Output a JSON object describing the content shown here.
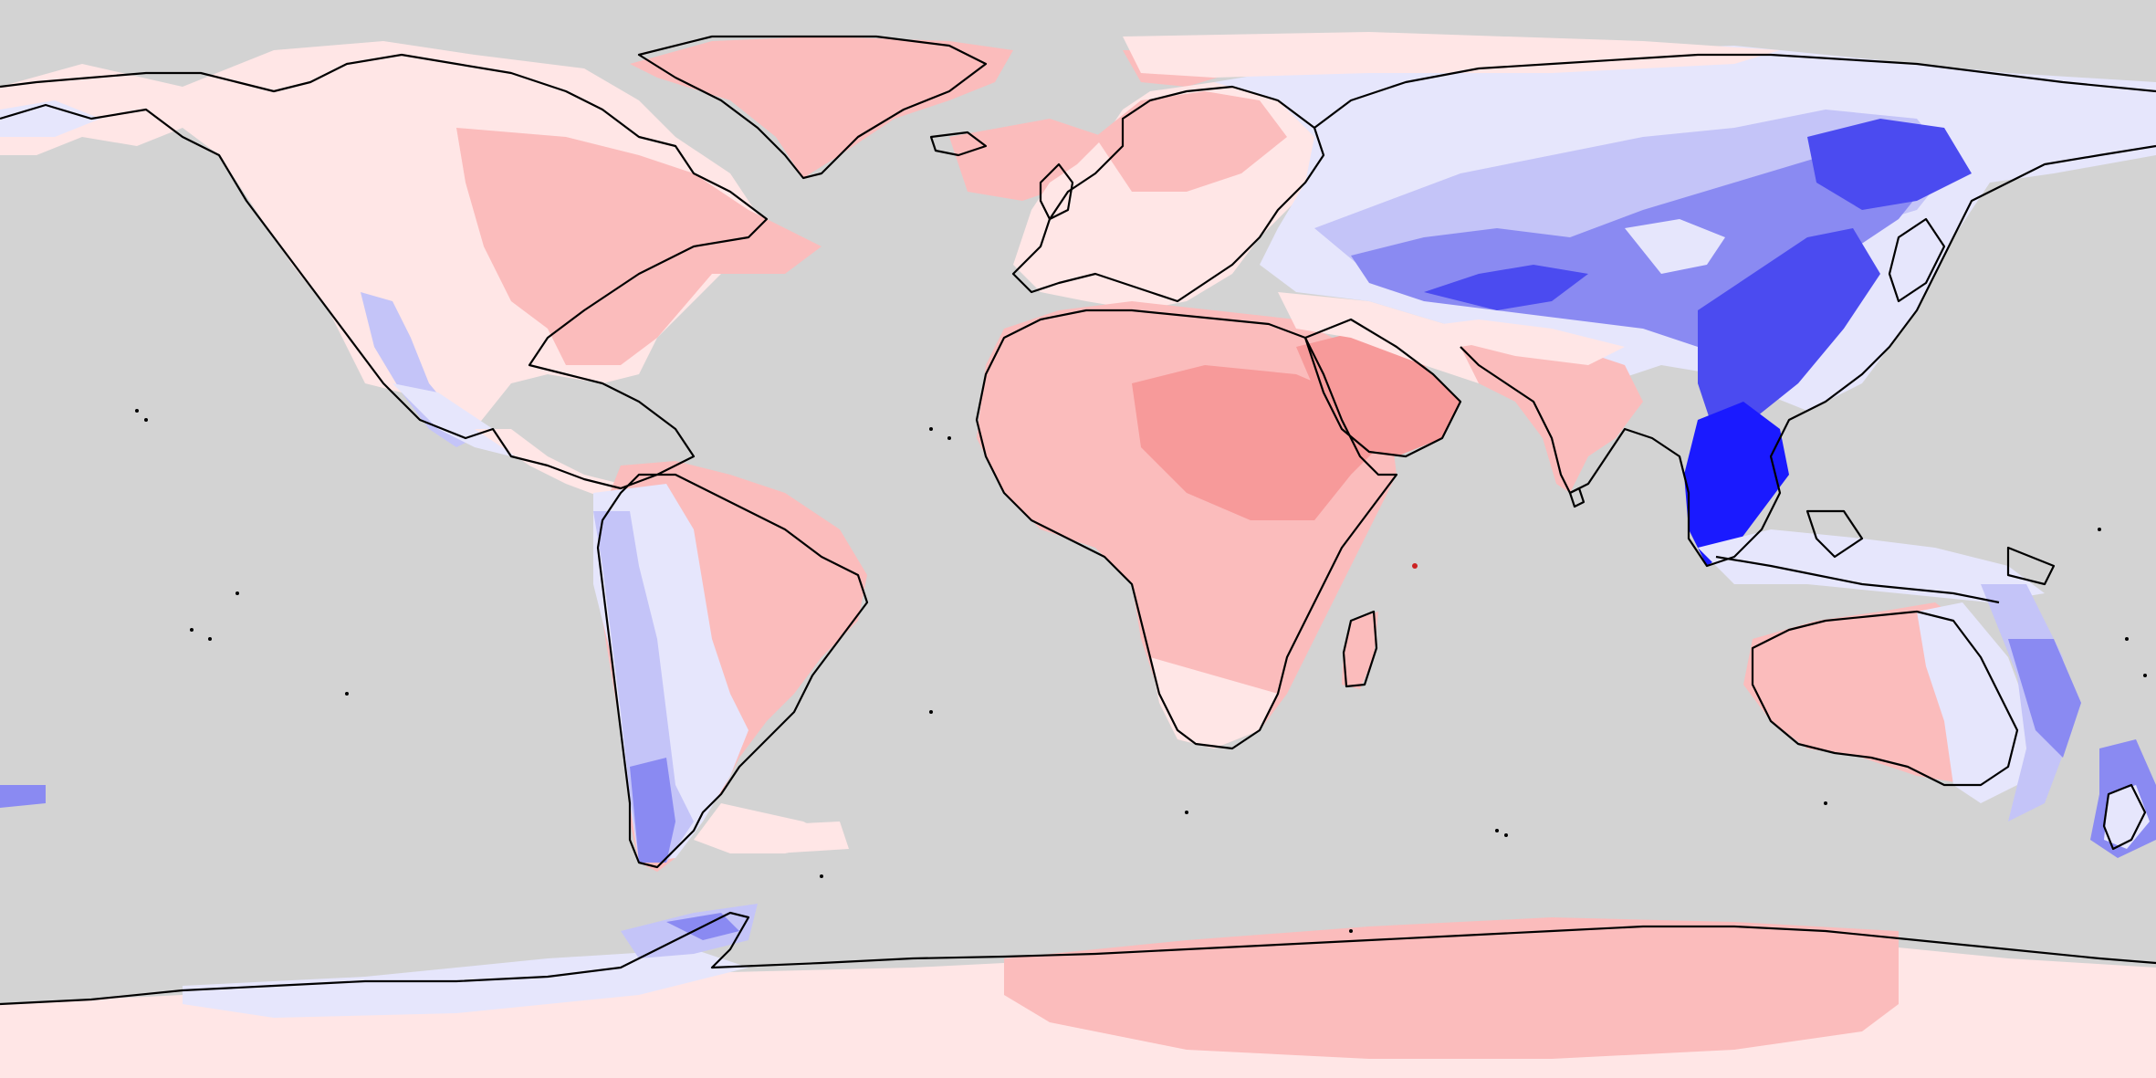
{
  "map": {
    "projection": "equirectangular",
    "extent": {
      "lon": [
        -180,
        180
      ],
      "lat": [
        -90,
        90
      ]
    },
    "background_color": "#d3d3d3",
    "coastline_color": "#000000",
    "colormap": {
      "type": "diverging",
      "levels": [
        {
          "name": "blue-4",
          "color": "#1a1aff"
        },
        {
          "name": "blue-3",
          "color": "#4b4bf0"
        },
        {
          "name": "blue-2",
          "color": "#8a8af2"
        },
        {
          "name": "blue-1",
          "color": "#c4c4f8"
        },
        {
          "name": "blue-0",
          "color": "#e6e6fc"
        },
        {
          "name": "red-0",
          "color": "#ffe6e6"
        },
        {
          "name": "red-1",
          "color": "#fbbcbc"
        },
        {
          "name": "red-2",
          "color": "#f79a9a"
        }
      ]
    },
    "regions": [
      {
        "name": "antarctica-warm",
        "level": "red-1"
      },
      {
        "name": "north-africa-arabia-warm-core",
        "level": "red-2"
      },
      {
        "name": "greenland-warm",
        "level": "red-1"
      },
      {
        "name": "east-asia-cold-core",
        "level": "blue-4"
      },
      {
        "name": "central-asia-cold",
        "level": "blue-3"
      },
      {
        "name": "south-america-west-cool",
        "level": "blue-1"
      },
      {
        "name": "australia-east-cool",
        "level": "blue-2"
      }
    ]
  }
}
